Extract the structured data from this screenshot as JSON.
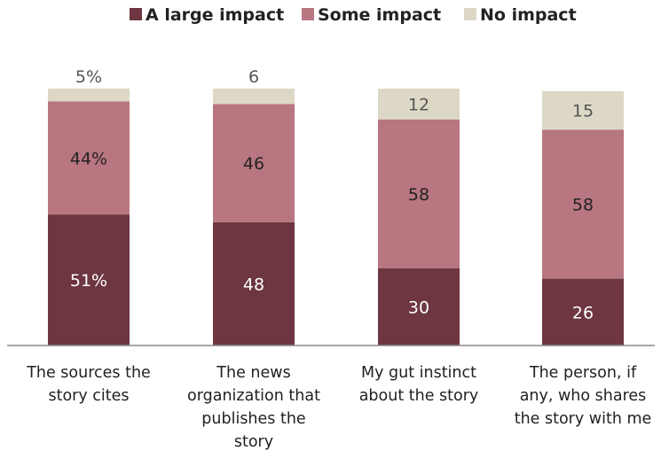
{
  "chart_data": {
    "type": "bar",
    "stacked": true,
    "categories": [
      [
        "The sources the",
        "story cites"
      ],
      [
        "The news",
        "organization that",
        "publishes the",
        "story"
      ],
      [
        "My gut instinct",
        "about the story"
      ],
      [
        "The person, if",
        "any, who shares",
        "the story with me"
      ]
    ],
    "series": [
      {
        "name": "A large impact",
        "color": "#6d3640",
        "values": [
          51,
          48,
          30,
          26
        ],
        "labels": [
          "51%",
          "48",
          "30",
          "26"
        ],
        "label_color": "#ffffff"
      },
      {
        "name": "Some impact",
        "color": "#b87680",
        "values": [
          44,
          46,
          58,
          58
        ],
        "labels": [
          "44%",
          "46",
          "58",
          "58"
        ],
        "label_color": "#222222"
      },
      {
        "name": "No impact",
        "color": "#ddd8c6",
        "values": [
          5,
          6,
          12,
          15
        ],
        "labels": [
          "5%",
          "6",
          "12",
          "15"
        ],
        "label_color": "#555555"
      }
    ],
    "ylim": [
      0,
      100
    ],
    "legend": "top-center"
  }
}
